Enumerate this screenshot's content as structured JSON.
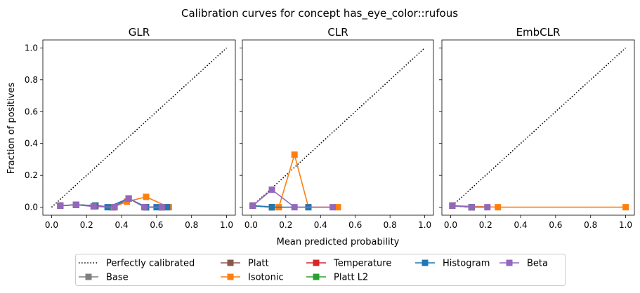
{
  "figure": {
    "title": "Calibration curves for concept has_eye_color::rufous",
    "xlabel": "Mean predicted probability",
    "ylabel": "Fraction of positives"
  },
  "legend": {
    "placement": "bottom-center",
    "entries": [
      {
        "key": "perfect",
        "label": "Perfectly calibrated"
      },
      {
        "key": "base",
        "label": "Base"
      },
      {
        "key": "platt",
        "label": "Platt"
      },
      {
        "key": "isotonic",
        "label": "Isotonic"
      },
      {
        "key": "temperature",
        "label": "Temperature"
      },
      {
        "key": "platt_l2",
        "label": "Platt L2"
      },
      {
        "key": "histogram",
        "label": "Histogram"
      },
      {
        "key": "beta",
        "label": "Beta"
      }
    ]
  },
  "colors": {
    "perfect": "#000000",
    "base": "#7f7f7f",
    "platt": "#8c564b",
    "isotonic": "#ff7f0e",
    "temperature": "#d62728",
    "platt_l2": "#2ca02c",
    "histogram": "#1f77b4",
    "beta": "#9467bd"
  },
  "chart_data": [
    {
      "type": "line",
      "title": "GLR",
      "xlim": [
        -0.05,
        1.05
      ],
      "ylim": [
        -0.05,
        1.05
      ],
      "xticks": [
        "0.0",
        "0.2",
        "0.4",
        "0.6",
        "0.8",
        "1.0"
      ],
      "yticks": [
        "0.0",
        "0.2",
        "0.4",
        "0.6",
        "0.8",
        "1.0"
      ],
      "grid": false,
      "series": [
        {
          "key": "base",
          "x": [
            0.05,
            0.14,
            0.25,
            0.35,
            0.44,
            0.54,
            0.63
          ],
          "y": [
            0.01,
            0.015,
            0.01,
            0.0,
            0.055,
            0.0,
            0.0
          ]
        },
        {
          "key": "platt",
          "x": [
            0.05,
            0.14,
            0.25,
            0.35,
            0.44,
            0.54,
            0.63
          ],
          "y": [
            0.01,
            0.015,
            0.01,
            0.0,
            0.055,
            0.0,
            0.0
          ]
        },
        {
          "key": "temperature",
          "x": [
            0.05,
            0.14,
            0.25,
            0.35,
            0.44,
            0.54,
            0.63
          ],
          "y": [
            0.01,
            0.015,
            0.01,
            0.0,
            0.055,
            0.0,
            0.0
          ]
        },
        {
          "key": "platt_l2",
          "x": [
            0.05,
            0.14,
            0.25,
            0.35,
            0.44,
            0.54,
            0.63
          ],
          "y": [
            0.01,
            0.015,
            0.01,
            0.0,
            0.055,
            0.0,
            0.0
          ]
        },
        {
          "key": "isotonic",
          "x": [
            0.05,
            0.14,
            0.25,
            0.35,
            0.43,
            0.54,
            0.67
          ],
          "y": [
            0.01,
            0.015,
            0.005,
            0.0,
            0.035,
            0.065,
            0.0
          ]
        },
        {
          "key": "histogram",
          "x": [
            0.05,
            0.14,
            0.25,
            0.32,
            0.44,
            0.54,
            0.6,
            0.66
          ],
          "y": [
            0.01,
            0.015,
            0.01,
            0.0,
            0.055,
            0.0,
            0.0,
            0.0
          ]
        },
        {
          "key": "beta",
          "x": [
            0.05,
            0.14,
            0.24,
            0.36,
            0.44,
            0.53,
            0.63
          ],
          "y": [
            0.01,
            0.015,
            0.005,
            0.0,
            0.055,
            0.0,
            0.0
          ]
        }
      ]
    },
    {
      "type": "line",
      "title": "CLR",
      "xlim": [
        -0.05,
        1.05
      ],
      "ylim": [
        -0.05,
        1.05
      ],
      "xticks": [
        "0.0",
        "0.2",
        "0.4",
        "0.6",
        "0.8",
        "1.0"
      ],
      "yticks": [],
      "grid": false,
      "series": [
        {
          "key": "base",
          "x": [
            0.01,
            0.12
          ],
          "y": [
            0.01,
            0.0
          ]
        },
        {
          "key": "platt",
          "x": [
            0.01,
            0.12
          ],
          "y": [
            0.01,
            0.0
          ]
        },
        {
          "key": "temperature",
          "x": [
            0.01,
            0.12
          ],
          "y": [
            0.01,
            0.0
          ]
        },
        {
          "key": "platt_l2",
          "x": [
            0.01,
            0.12
          ],
          "y": [
            0.01,
            0.0
          ]
        },
        {
          "key": "isotonic",
          "x": [
            0.01,
            0.16,
            0.25,
            0.33,
            0.5
          ],
          "y": [
            0.01,
            0.0,
            0.33,
            0.0,
            0.0
          ]
        },
        {
          "key": "histogram",
          "x": [
            0.01,
            0.12,
            0.33
          ],
          "y": [
            0.01,
            0.0,
            0.0
          ]
        },
        {
          "key": "beta",
          "x": [
            0.01,
            0.12,
            0.25,
            0.47
          ],
          "y": [
            0.01,
            0.11,
            0.0,
            0.0
          ]
        }
      ]
    },
    {
      "type": "line",
      "title": "EmbCLR",
      "xlim": [
        -0.05,
        1.05
      ],
      "ylim": [
        -0.05,
        1.05
      ],
      "xticks": [
        "0.0",
        "0.2",
        "0.4",
        "0.6",
        "0.8",
        "1.0"
      ],
      "yticks": [],
      "grid": false,
      "series": [
        {
          "key": "base",
          "x": [
            0.01,
            0.12
          ],
          "y": [
            0.01,
            0.0
          ]
        },
        {
          "key": "platt",
          "x": [
            0.01,
            0.12
          ],
          "y": [
            0.01,
            0.0
          ]
        },
        {
          "key": "temperature",
          "x": [
            0.01,
            0.12
          ],
          "y": [
            0.01,
            0.0
          ]
        },
        {
          "key": "platt_l2",
          "x": [
            0.01,
            0.12
          ],
          "y": [
            0.01,
            0.0
          ]
        },
        {
          "key": "histogram",
          "x": [
            0.01,
            0.12
          ],
          "y": [
            0.01,
            0.0
          ]
        },
        {
          "key": "isotonic",
          "x": [
            0.01,
            0.27,
            1.0
          ],
          "y": [
            0.01,
            0.0,
            0.0
          ]
        },
        {
          "key": "beta",
          "x": [
            0.01,
            0.12,
            0.21
          ],
          "y": [
            0.01,
            0.0,
            0.0
          ]
        }
      ]
    }
  ]
}
